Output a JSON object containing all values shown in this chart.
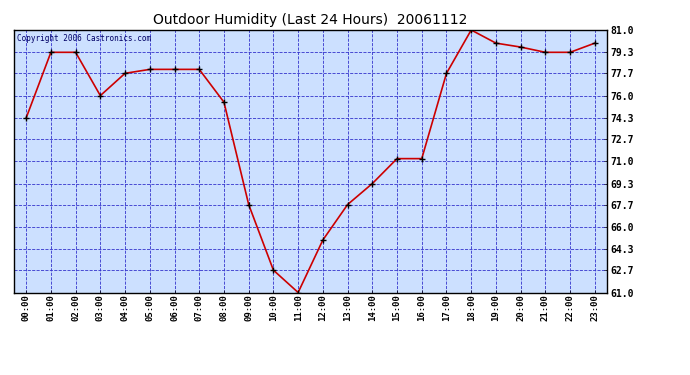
{
  "title": "Outdoor Humidity (Last 24 Hours)  20061112",
  "copyright_text": "Copyright 2006 Castronics.com",
  "x_labels": [
    "00:00",
    "01:00",
    "02:00",
    "03:00",
    "04:00",
    "05:00",
    "06:00",
    "07:00",
    "08:00",
    "09:00",
    "10:00",
    "11:00",
    "12:00",
    "13:00",
    "14:00",
    "15:00",
    "16:00",
    "17:00",
    "18:00",
    "19:00",
    "20:00",
    "21:00",
    "22:00",
    "23:00"
  ],
  "y_values": [
    74.3,
    79.3,
    79.3,
    76.0,
    77.7,
    78.0,
    78.0,
    78.0,
    75.5,
    67.7,
    62.7,
    61.0,
    65.0,
    67.7,
    69.3,
    71.2,
    71.2,
    77.7,
    81.0,
    80.0,
    79.7,
    79.3,
    79.3,
    80.0
  ],
  "line_color": "#cc0000",
  "marker_color": "#000000",
  "outer_bg_color": "#ffffff",
  "plot_bg_color": "#cce0ff",
  "grid_color": "#3333cc",
  "border_color": "#000000",
  "title_color": "#000000",
  "copyright_color": "#000066",
  "y_min": 61.0,
  "y_max": 81.0,
  "y_ticks": [
    61.0,
    62.7,
    64.3,
    66.0,
    67.7,
    69.3,
    71.0,
    72.7,
    74.3,
    76.0,
    77.7,
    79.3,
    81.0
  ],
  "figsize": [
    6.9,
    3.75
  ],
  "dpi": 100
}
